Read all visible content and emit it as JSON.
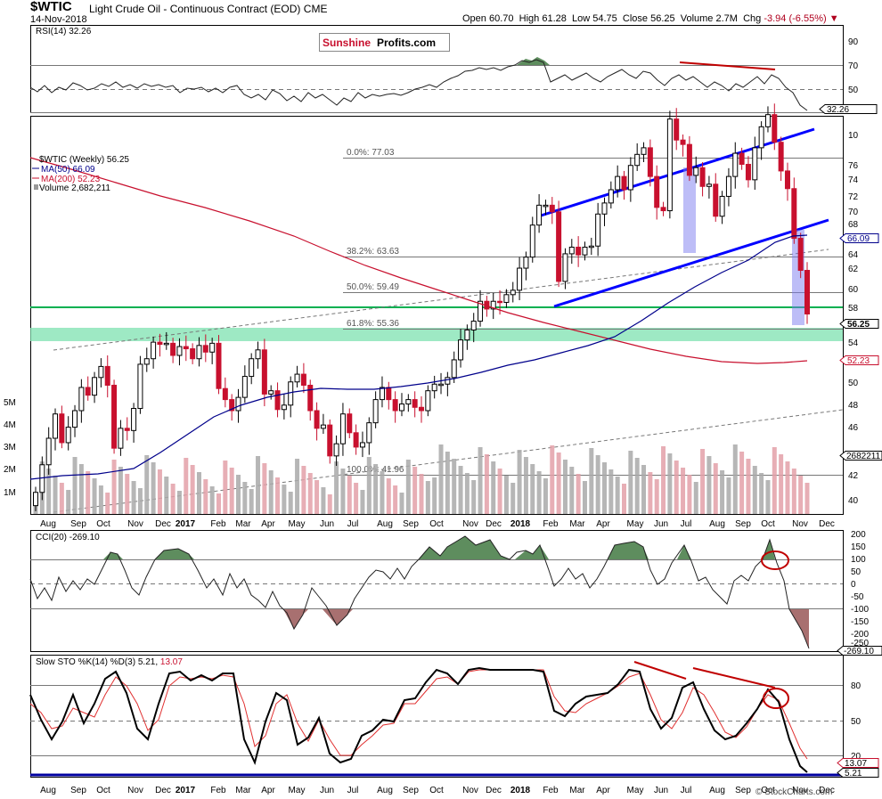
{
  "header": {
    "symbol": "$WTIC",
    "name": "Light Crude Oil - Continuous Contract (EOD)",
    "exchange": "CME",
    "date": "14-Nov-2018",
    "open_label": "Open",
    "open": "60.70",
    "high_label": "High",
    "high": "61.28",
    "low_label": "Low",
    "low": "54.75",
    "close_label": "Close",
    "close": "56.25",
    "volume_label": "Volume",
    "volume": "2.7M",
    "chg_label": "Chg",
    "chg": "-3.94 (-6.55%)"
  },
  "logo": {
    "part1": "Sunshine",
    "part2": "Profits.com"
  },
  "watermark": "© StockCharts.com",
  "colors": {
    "up": "#a9a9a9",
    "down": "#c8102e",
    "ma50": "#00008b",
    "ma200": "#c8102e",
    "support": "#00b050",
    "zone": "#7ee2b0",
    "channel": "#0000ff",
    "annot": "#c00000"
  },
  "x_axis": {
    "labels": [
      "Aug",
      "Sep",
      "Oct",
      "Nov",
      "Dec",
      "2017",
      "Feb",
      "Mar",
      "Apr",
      "May",
      "Jun",
      "Jul",
      "Aug",
      "Sep",
      "Oct",
      "Nov",
      "Dec",
      "2018",
      "Feb",
      "Mar",
      "Apr",
      "May",
      "Jun",
      "Jul",
      "Aug",
      "Sep",
      "Oct",
      "Nov",
      "Dec"
    ]
  },
  "rsi_panel": {
    "legend": "RSI(14) 32.26",
    "ticks": [
      "90",
      "70",
      "50"
    ],
    "last_label": "32.26",
    "levels": [
      70,
      50,
      30
    ]
  },
  "price_panel": {
    "legend": [
      "$WTIC (Weekly) 56.25",
      "MA(50) 66.09",
      "MA(200) 52.23",
      "Volume 2,682,211"
    ],
    "ticks": [
      "76",
      "74",
      "72",
      "70",
      "68",
      "66",
      "64",
      "62",
      "60",
      "58",
      "54",
      "52",
      "50",
      "48",
      "46",
      "44",
      "42",
      "40",
      "10"
    ],
    "volume_ticks": [
      "5M",
      "4M",
      "3M",
      "2M",
      "1M"
    ],
    "last_price": "56.25",
    "ma50_last": "66.09",
    "ma200_last": "52.23",
    "volume_last": "2682211",
    "fib": [
      {
        "label": "0.0%: 77.03",
        "value": 77.03
      },
      {
        "label": "38.2%: 63.63",
        "value": 63.63
      },
      {
        "label": "50.0%: 59.49",
        "value": 59.49
      },
      {
        "label": "61.8%: 55.36",
        "value": 55.36
      },
      {
        "label": "100.0%: 41.96",
        "value": 41.96
      }
    ],
    "support_level": 57.9
  },
  "cci_panel": {
    "legend": "CCI(20) -269.10",
    "ticks": [
      "200",
      "150",
      "100",
      "50",
      "0",
      "-50",
      "-100",
      "-150",
      "-200",
      "-250"
    ],
    "last_label": "-269.10"
  },
  "sto_panel": {
    "legend_prefix": "Slow STO %K(14) %D(3)",
    "k_value": "5.21",
    "d_value": "13.07",
    "ticks": [
      "80",
      "50",
      "20"
    ],
    "k_last_label": "5.21",
    "d_last_label": "13.07"
  },
  "chart_data": {
    "type": "candlestick",
    "timeframe": "weekly",
    "range": "Aug 2016 – Nov 2018",
    "closes": [
      40.1,
      42.6,
      45.0,
      47.2,
      44.6,
      46.0,
      47.5,
      49.6,
      48.9,
      50.5,
      51.5,
      49.8,
      44.1,
      45.9,
      45.7,
      47.7,
      51.7,
      52.2,
      53.7,
      53.5,
      53.6,
      52.5,
      53.3,
      53.1,
      52.2,
      53.4,
      52.8,
      53.6,
      49.5,
      48.5,
      47.5,
      48.7,
      50.6,
      52.2,
      53.0,
      49.0,
      49.3,
      47.6,
      48.0,
      50.1,
      50.8,
      49.8,
      47.5,
      45.9,
      46.2,
      43.4,
      44.5,
      47.2,
      45.5,
      44.2,
      44.6,
      46.4,
      48.5,
      49.6,
      48.5,
      47.5,
      48.1,
      48.5,
      47.8,
      47.5,
      49.3,
      49.9,
      49.9,
      50.5,
      52.1,
      53.9,
      54.8,
      55.6,
      57.4,
      56.7,
      57.4,
      57.3,
      58.0,
      58.4,
      60.4,
      61.4,
      64.3,
      66.1,
      66.1,
      65.5,
      59.2,
      61.7,
      62.3,
      61.6,
      62.3,
      62.4,
      65.3,
      66.3,
      67.5,
      68.7,
      67.5,
      69.7,
      70.7,
      71.3,
      68.7,
      65.9,
      65.6,
      73.9,
      72.0,
      71.6,
      68.8,
      69.5,
      67.8,
      68.0,
      65.1,
      66.9,
      68.7,
      70.8,
      69.8,
      68.4,
      71.3,
      73.2,
      74.3,
      71.8,
      69.2,
      67.6,
      63.1,
      60.2,
      56.25
    ],
    "ma50_last": 66.09,
    "ma200_last": 52.23,
    "volume_last": 2682211,
    "fib_levels": [
      77.03,
      63.63,
      59.49,
      55.36,
      41.96
    ],
    "rsi_last": 32.26,
    "cci_last": -269.1,
    "sto_k_last": 5.21,
    "sto_d_last": 13.07
  }
}
